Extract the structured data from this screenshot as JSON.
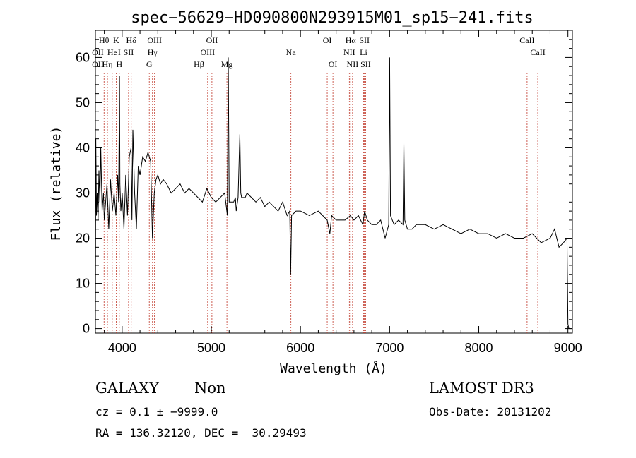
{
  "chart_data": {
    "type": "line",
    "title": "spec−56629−HD090800N293915M01_sp15−241.fits",
    "xlabel": "Wavelength (Å)",
    "ylabel": "Flux (relative)",
    "xlim": [
      3700,
      9050
    ],
    "ylim": [
      -1,
      66
    ],
    "x_ticks": [
      4000,
      5000,
      6000,
      7000,
      8000,
      9000
    ],
    "y_ticks": [
      0,
      10,
      20,
      30,
      40,
      50,
      60
    ],
    "series": [
      {
        "name": "spectrum",
        "x": [
          3700,
          3705,
          3712,
          3720,
          3730,
          3740,
          3750,
          3760,
          3775,
          3790,
          3800,
          3815,
          3830,
          3850,
          3870,
          3890,
          3910,
          3930,
          3950,
          3960,
          3970,
          3975,
          3985,
          4000,
          4020,
          4040,
          4060,
          4080,
          4100,
          4110,
          4120,
          4140,
          4160,
          4180,
          4200,
          4230,
          4260,
          4290,
          4320,
          4340,
          4360,
          4380,
          4400,
          4430,
          4460,
          4500,
          4550,
          4600,
          4650,
          4700,
          4750,
          4800,
          4850,
          4900,
          4950,
          5000,
          5050,
          5100,
          5150,
          5180,
          5190,
          5200,
          5250,
          5270,
          5280,
          5300,
          5320,
          5330,
          5340,
          5380,
          5400,
          5450,
          5500,
          5550,
          5600,
          5650,
          5700,
          5750,
          5800,
          5850,
          5880,
          5890,
          5900,
          5950,
          6000,
          6100,
          6200,
          6300,
          6330,
          6350,
          6400,
          6500,
          6560,
          6600,
          6650,
          6700,
          6720,
          6750,
          6800,
          6850,
          6900,
          6950,
          6990,
          7000,
          7010,
          7050,
          7100,
          7150,
          7160,
          7170,
          7200,
          7250,
          7300,
          7400,
          7500,
          7600,
          7700,
          7800,
          7900,
          8000,
          8100,
          8200,
          8300,
          8400,
          8500,
          8600,
          8700,
          8800,
          8850,
          8900,
          8950,
          8990,
          9000,
          9010,
          9030,
          9050
        ],
        "y": [
          1,
          42,
          25,
          30,
          24,
          35,
          28,
          40,
          26,
          30,
          24,
          28,
          32,
          22,
          33,
          26,
          30,
          25,
          34,
          28,
          56,
          32,
          26,
          30,
          22,
          34,
          25,
          38,
          40,
          24,
          44,
          30,
          22,
          36,
          34,
          38,
          37,
          39,
          37,
          20,
          30,
          33,
          34,
          32,
          33,
          32,
          30,
          31,
          32,
          30,
          31,
          30,
          29,
          28,
          31,
          29,
          28,
          29,
          30,
          25,
          60,
          28,
          28,
          29,
          26,
          29,
          43,
          30,
          29,
          29,
          30,
          29,
          28,
          29,
          27,
          28,
          27,
          26,
          28,
          25,
          26,
          12,
          25,
          26,
          26,
          25,
          26,
          24,
          21,
          25,
          24,
          24,
          25,
          24,
          25,
          23,
          26,
          24,
          23,
          23,
          24,
          20,
          23,
          60,
          25,
          23,
          24,
          23,
          41,
          24,
          22,
          22,
          23,
          23,
          22,
          23,
          22,
          21,
          22,
          21,
          21,
          20,
          21,
          20,
          20,
          21,
          19,
          20,
          22,
          18,
          19,
          20,
          1,
          0,
          0,
          0
        ]
      }
    ],
    "line_markers": [
      {
        "label": "OII",
        "x": 3727,
        "row": 2
      },
      {
        "label": "Hθ",
        "x": 3797,
        "row": 1
      },
      {
        "label": "OII",
        "x": 3727,
        "row": 3
      },
      {
        "label": "Hη",
        "x": 3835,
        "row": 3
      },
      {
        "label": "He",
        "x": 3889,
        "row": 2
      },
      {
        "label": "K",
        "x": 3934,
        "row": 1
      },
      {
        "label": "I",
        "x": 3968,
        "row": 2
      },
      {
        "label": "H",
        "x": 3968,
        "row": 3
      },
      {
        "label": "Hδ",
        "x": 4102,
        "row": 1
      },
      {
        "label": "SII",
        "x": 4072,
        "row": 2
      },
      {
        "label": "OIII",
        "x": 4363,
        "row": 1
      },
      {
        "label": "Hγ",
        "x": 4340,
        "row": 2
      },
      {
        "label": "G",
        "x": 4304,
        "row": 3
      },
      {
        "label": "OII",
        "x": 5007,
        "row": 1
      },
      {
        "label": "OIII",
        "x": 4959,
        "row": 2
      },
      {
        "label": "Hβ",
        "x": 4861,
        "row": 3
      },
      {
        "label": "Mg",
        "x": 5175,
        "row": 3
      },
      {
        "label": "Na",
        "x": 5893,
        "row": 2
      },
      {
        "label": "OI",
        "x": 6300,
        "row": 1
      },
      {
        "label": "OI",
        "x": 6364,
        "row": 3
      },
      {
        "label": "Hα",
        "x": 6563,
        "row": 1
      },
      {
        "label": "SII",
        "x": 6717,
        "row": 1
      },
      {
        "label": "NII",
        "x": 6548,
        "row": 2
      },
      {
        "label": "Li",
        "x": 6708,
        "row": 2
      },
      {
        "label": "NII",
        "x": 6584,
        "row": 3
      },
      {
        "label": "SII",
        "x": 6731,
        "row": 3
      },
      {
        "label": "CaII",
        "x": 8542,
        "row": 1
      },
      {
        "label": "CaII",
        "x": 8662,
        "row": 2
      }
    ],
    "grid": false
  },
  "footer": {
    "object_class": "GALAXY",
    "subclass": "Non",
    "survey": "LAMOST DR3",
    "redshift_line": "cz = 0.1 ± −9999.0",
    "obs_date_line": "Obs-Date: 20131202",
    "coords_line": "RA = 136.32120, DEC =  30.29493"
  }
}
